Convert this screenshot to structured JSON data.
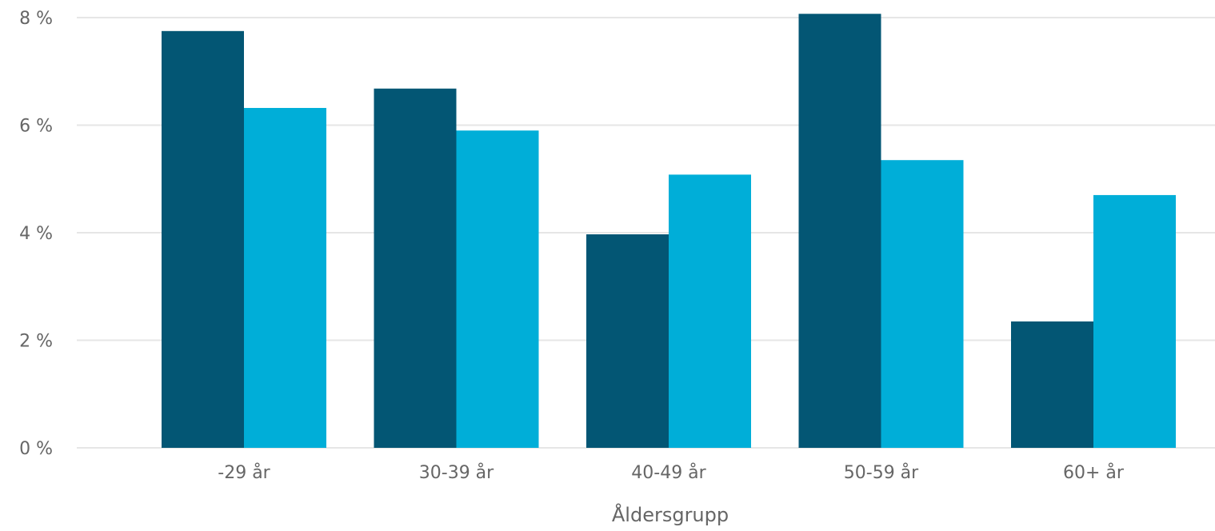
{
  "chart_data": {
    "type": "bar",
    "title": "",
    "xlabel": "Åldersgrupp",
    "ylabel": "",
    "categories": [
      "-29 år",
      "30-39 år",
      "40-49 år",
      "50-59 år",
      "60+ år"
    ],
    "series": [
      {
        "color": "#035674",
        "values": [
          7.75,
          6.68,
          3.97,
          8.07,
          2.35
        ]
      },
      {
        "color": "#00aed8",
        "values": [
          6.32,
          5.9,
          5.08,
          5.35,
          4.7
        ]
      }
    ],
    "ylim": [
      0,
      8
    ],
    "yticks": [
      0,
      2,
      4,
      6,
      8
    ],
    "ytick_labels": [
      "0 %",
      "2 %",
      "4 %",
      "6 %",
      "8 %"
    ],
    "grid": true
  }
}
